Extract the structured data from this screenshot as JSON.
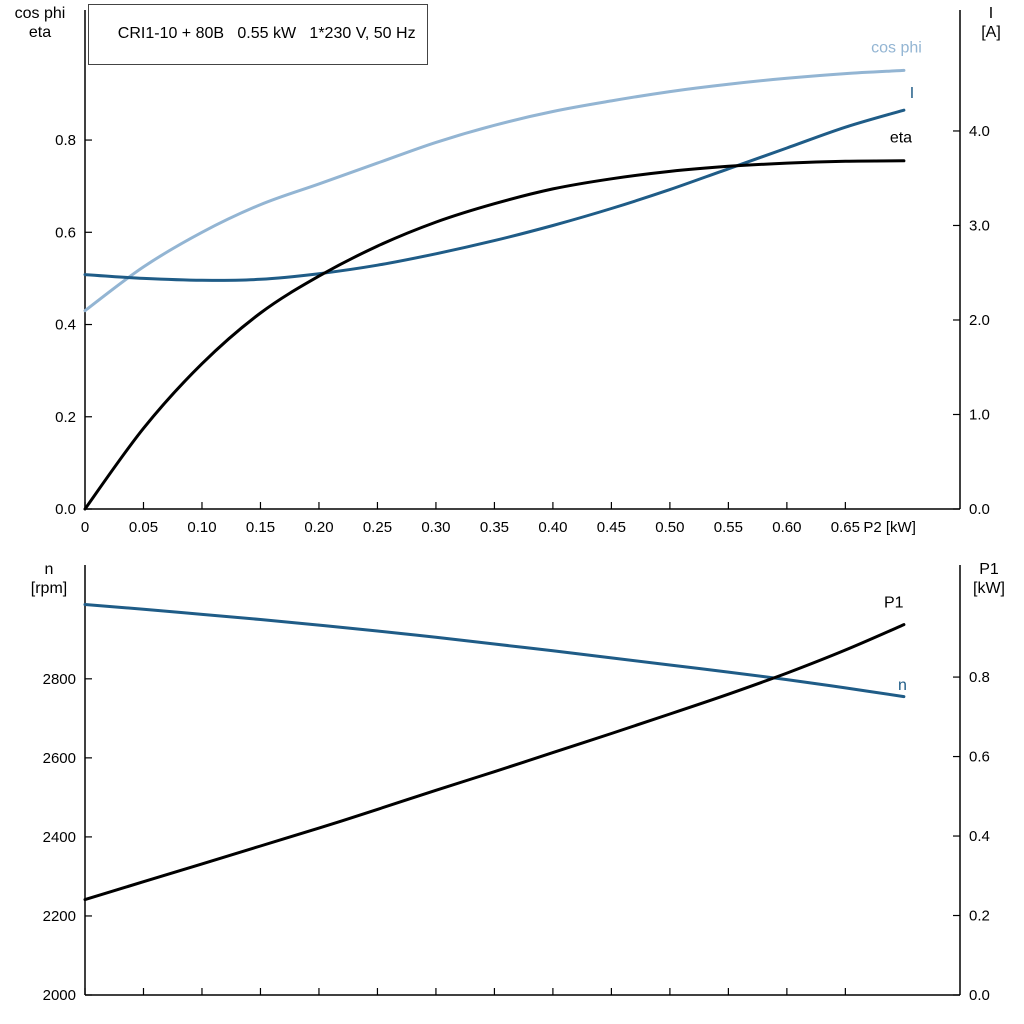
{
  "title_box": "CRI1-10 + 80B   0.55 kW   1*230 V, 50 Hz",
  "chart_data": [
    {
      "type": "line",
      "title": "CRI1-10 + 80B   0.55 kW   1*230 V, 50 Hz",
      "x_axis": {
        "min": 0,
        "max": 0.748,
        "label": "P2 [kW]",
        "ticks": [
          0,
          0.05,
          0.1,
          0.15,
          0.2,
          0.25,
          0.3,
          0.35,
          0.4,
          0.45,
          0.5,
          0.55,
          0.6,
          0.65
        ],
        "tick_labels": [
          "0",
          "0.05",
          "0.10",
          "0.15",
          "0.20",
          "0.25",
          "0.30",
          "0.35",
          "0.40",
          "0.45",
          "0.50",
          "0.55",
          "0.60",
          "0.65"
        ]
      },
      "y_left": {
        "min": 0,
        "max": 1.082,
        "title": [
          "cos phi",
          "eta"
        ],
        "ticks": [
          0,
          0.2,
          0.4,
          0.6,
          0.8
        ],
        "tick_labels": [
          "0.0",
          "0.2",
          "0.4",
          "0.6",
          "0.8"
        ]
      },
      "y_right": {
        "min": 0,
        "max": 5.28,
        "title": [
          "I",
          "[A]"
        ],
        "ticks": [
          0,
          1,
          2,
          3,
          4
        ],
        "tick_labels": [
          "0.0",
          "1.0",
          "2.0",
          "3.0",
          "4.0"
        ]
      },
      "x": [
        0,
        0.05,
        0.1,
        0.15,
        0.2,
        0.25,
        0.3,
        0.35,
        0.4,
        0.45,
        0.5,
        0.55,
        0.6,
        0.65,
        0.7
      ],
      "series": [
        {
          "name": "cos phi",
          "axis": "left",
          "color": "#93b5d3",
          "values": [
            0.43,
            0.525,
            0.6,
            0.66,
            0.705,
            0.75,
            0.795,
            0.832,
            0.862,
            0.885,
            0.905,
            0.921,
            0.934,
            0.944,
            0.951
          ],
          "label_at": [
            0.672,
            0.99
          ]
        },
        {
          "name": "I",
          "axis": "right",
          "color": "#1f5c87",
          "values": [
            2.48,
            2.44,
            2.42,
            2.43,
            2.49,
            2.58,
            2.7,
            2.84,
            3.0,
            3.18,
            3.38,
            3.6,
            3.82,
            4.04,
            4.22
          ],
          "label_at": [
            0.705,
            4.35
          ]
        },
        {
          "name": "eta",
          "axis": "left",
          "color": "#000000",
          "values": [
            0,
            0.175,
            0.315,
            0.425,
            0.505,
            0.57,
            0.622,
            0.662,
            0.694,
            0.716,
            0.732,
            0.743,
            0.75,
            0.754,
            0.755
          ],
          "label_at": [
            0.688,
            0.795
          ]
        }
      ]
    },
    {
      "type": "line",
      "title": "",
      "x_axis": {
        "min": 0,
        "max": 0.748,
        "label": "",
        "ticks": [
          0,
          0.05,
          0.1,
          0.15,
          0.2,
          0.25,
          0.3,
          0.35,
          0.4,
          0.45,
          0.5,
          0.55,
          0.6,
          0.65
        ],
        "tick_labels": []
      },
      "y_left": {
        "min": 2000,
        "max": 3088,
        "title": [
          "n",
          "[rpm]"
        ],
        "ticks": [
          2000,
          2200,
          2400,
          2600,
          2800
        ],
        "tick_labels": [
          "2000",
          "2200",
          "2400",
          "2600",
          "2800"
        ]
      },
      "y_right": {
        "min": 0,
        "max": 1.082,
        "title": [
          "P1",
          "[kW]"
        ],
        "ticks": [
          0,
          0.2,
          0.4,
          0.6,
          0.8
        ],
        "tick_labels": [
          "0.0",
          "0.2",
          "0.4",
          "0.6",
          "0.8"
        ]
      },
      "x": [
        0,
        0.05,
        0.1,
        0.15,
        0.2,
        0.25,
        0.3,
        0.35,
        0.4,
        0.45,
        0.5,
        0.55,
        0.6,
        0.65,
        0.7
      ],
      "series": [
        {
          "name": "n",
          "axis": "left",
          "color": "#1f5c87",
          "values": [
            2988,
            2976,
            2963,
            2950,
            2936,
            2921,
            2905,
            2888,
            2871,
            2853,
            2835,
            2817,
            2798,
            2777,
            2755
          ],
          "label_at": [
            0.695,
            2772
          ]
        },
        {
          "name": "P1",
          "axis": "right",
          "color": "#000000",
          "values": [
            0.24,
            0.285,
            0.33,
            0.375,
            0.42,
            0.467,
            0.515,
            0.562,
            0.61,
            0.658,
            0.707,
            0.757,
            0.81,
            0.868,
            0.932
          ],
          "label_at": [
            0.683,
            0.975
          ]
        }
      ]
    }
  ]
}
